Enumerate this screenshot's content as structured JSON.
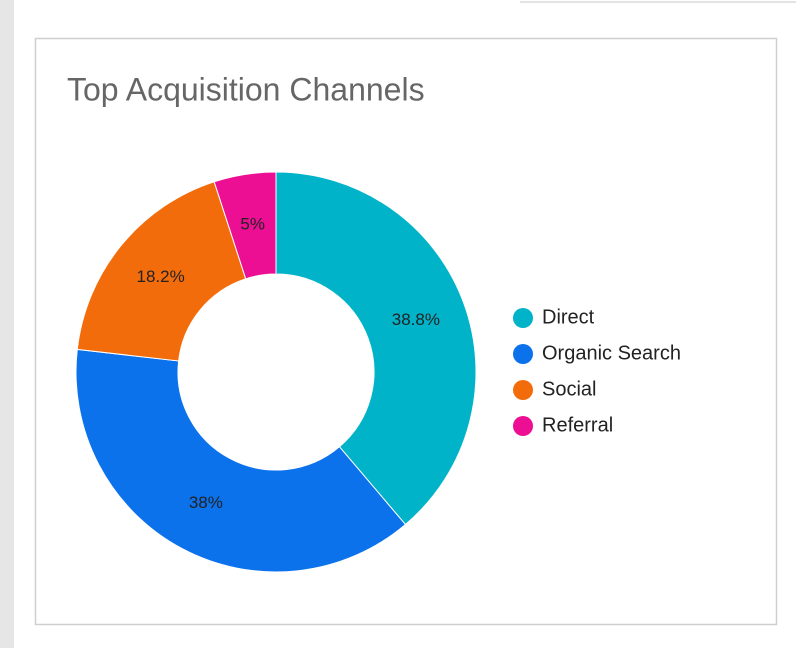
{
  "chart_data": {
    "type": "donut",
    "title": "Top Acquisition Channels",
    "categories": [
      "Direct",
      "Organic Search",
      "Social",
      "Referral"
    ],
    "values": [
      38.8,
      38,
      18.2,
      5
    ],
    "value_labels": [
      "38.8%",
      "38%",
      "18.2%",
      "5%"
    ],
    "colors": [
      "#00b3c9",
      "#0b72ec",
      "#f36c0c",
      "#ec0e93"
    ],
    "legend": "right"
  }
}
